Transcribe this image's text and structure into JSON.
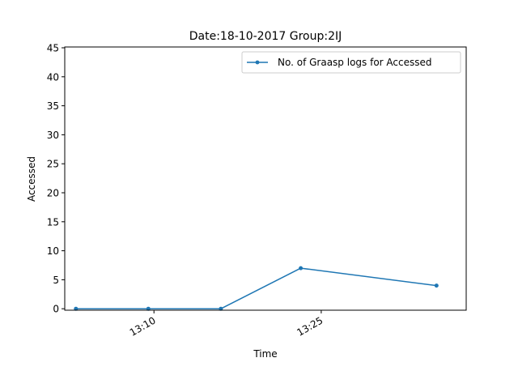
{
  "chart_data": {
    "type": "line",
    "title": "Date:18-10-2017  Group:2IJ",
    "xlabel": "Time",
    "ylabel": "Accessed",
    "x_axis_type": "time",
    "xlim": [
      "13:02",
      "13:38"
    ],
    "x_ticks": [
      "13:10",
      "13:25"
    ],
    "ylim": [
      0,
      45
    ],
    "y_ticks": [
      0,
      5,
      10,
      15,
      20,
      25,
      30,
      35,
      40,
      45
    ],
    "grid": false,
    "legend_position": "top-right",
    "series": [
      {
        "name": "No. of Graasp logs for Accessed",
        "color": "#1f77b4",
        "marker": "dot",
        "x": [
          "13:03",
          "13:09:30",
          "13:16",
          "13:23:10",
          "13:35:20"
        ],
        "y": [
          0,
          0,
          0,
          7,
          4
        ]
      }
    ]
  }
}
